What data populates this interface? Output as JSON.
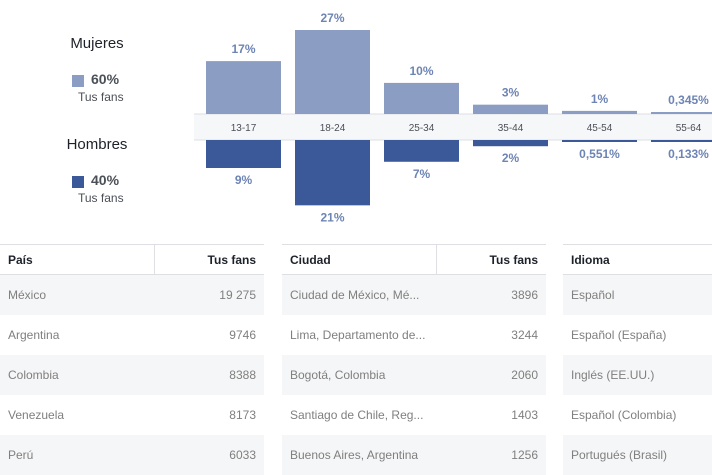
{
  "legend": {
    "women": {
      "heading": "Mujeres",
      "percent": "60%",
      "sub": "Tus fans",
      "color": "#8b9dc3"
    },
    "men": {
      "heading": "Hombres",
      "percent": "40%",
      "sub": "Tus fans",
      "color": "#3b5998"
    }
  },
  "chart_data": {
    "type": "bar",
    "categories": [
      "13-17",
      "18-24",
      "25-34",
      "35-44",
      "45-54",
      "55-64"
    ],
    "series": [
      {
        "name": "Mujeres",
        "values": [
          17,
          27,
          10,
          3,
          1,
          0.345
        ],
        "labels": [
          "17%",
          "27%",
          "10%",
          "3%",
          "1%",
          "0,345%"
        ],
        "color": "#8b9dc3"
      },
      {
        "name": "Hombres",
        "values": [
          9,
          21,
          7,
          2,
          0.551,
          0.133
        ],
        "labels": [
          "9%",
          "21%",
          "7%",
          "2%",
          "0,551%",
          "0,133%"
        ],
        "color": "#3b5998"
      }
    ],
    "ylim": [
      0,
      27
    ]
  },
  "tables": {
    "country": {
      "headers": [
        "País",
        "Tus fans"
      ],
      "rows": [
        [
          "México",
          "19 275"
        ],
        [
          "Argentina",
          "9746"
        ],
        [
          "Colombia",
          "8388"
        ],
        [
          "Venezuela",
          "8173"
        ],
        [
          "Perú",
          "6033"
        ]
      ]
    },
    "city": {
      "headers": [
        "Ciudad",
        "Tus fans"
      ],
      "rows": [
        [
          "Ciudad de México, Mé...",
          "3896"
        ],
        [
          "Lima, Departamento de...",
          "3244"
        ],
        [
          "Bogotá, Colombia",
          "2060"
        ],
        [
          "Santiago de Chile, Reg...",
          "1403"
        ],
        [
          "Buenos Aires, Argentina",
          "1256"
        ]
      ]
    },
    "language": {
      "headers": [
        "Idioma"
      ],
      "rows": [
        [
          "Español"
        ],
        [
          "Español (España)"
        ],
        [
          "Inglés (EE.UU.)"
        ],
        [
          "Español (Colombia)"
        ],
        [
          "Portugués (Brasil)"
        ]
      ]
    }
  }
}
